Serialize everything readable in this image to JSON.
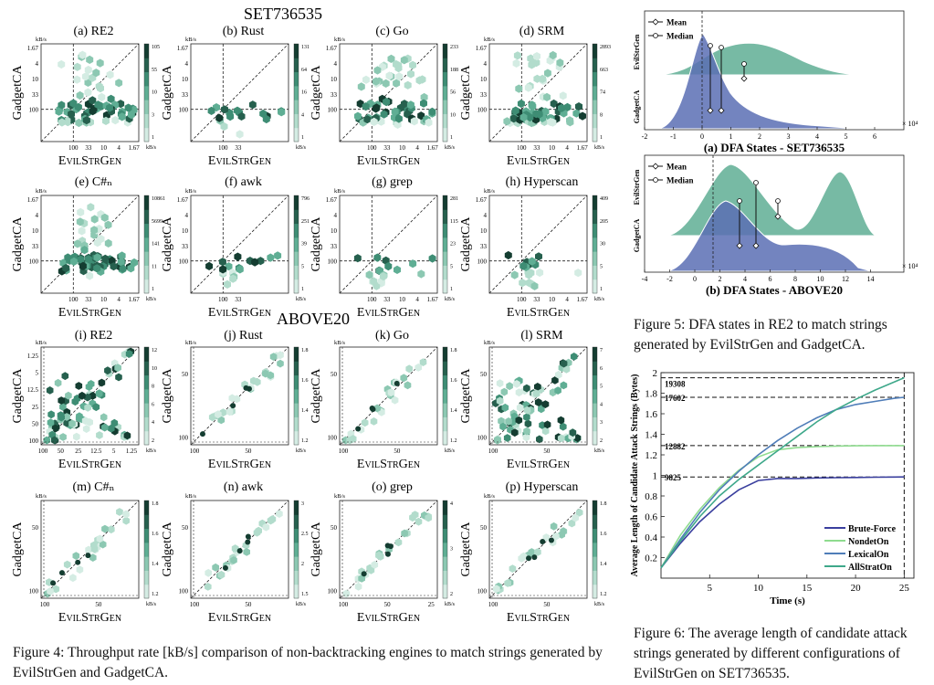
{
  "fig4": {
    "section_titles": [
      "SET736535",
      "ABOVE20"
    ],
    "top_panels": [
      {
        "title": "(a) RE2",
        "cb_ticks": [
          "105",
          "55",
          "10",
          "3",
          "1"
        ]
      },
      {
        "title": "(b) Rust",
        "cb_ticks": [
          "131",
          "64",
          "16",
          "4",
          "1"
        ]
      },
      {
        "title": "(c) Go",
        "cb_ticks": [
          "233",
          "188",
          "56",
          "10",
          "1"
        ]
      },
      {
        "title": "(d) SRM",
        "cb_ticks": [
          "2893",
          "663",
          "74",
          "8",
          "1"
        ]
      },
      {
        "title": "(e) C#ₙ",
        "cb_ticks": [
          "10861",
          "5699",
          "141",
          "11",
          "1"
        ]
      },
      {
        "title": "(f) awk",
        "cb_ticks": [
          "796",
          "251",
          "39",
          "5",
          "1"
        ]
      },
      {
        "title": "(g) grep",
        "cb_ticks": [
          "281",
          "115",
          "23",
          "5",
          "1"
        ]
      },
      {
        "title": "(h) Hyperscan",
        "cb_ticks": [
          "409",
          "205",
          "30",
          "5",
          "1"
        ]
      }
    ],
    "bottom_panels": [
      {
        "title": "(i) RE2",
        "cb_ticks": [
          "12",
          "10",
          "8",
          "6",
          "4",
          "2"
        ]
      },
      {
        "title": "(j) Rust",
        "cb_ticks": [
          "1.8",
          "1.6",
          "1.4",
          "1.2"
        ]
      },
      {
        "title": "(k) Go",
        "cb_ticks": [
          "1.8",
          "1.6",
          "1.4",
          "1.2"
        ]
      },
      {
        "title": "(l) SRM",
        "cb_ticks": [
          "7",
          "6",
          "5",
          "4",
          "3",
          "2"
        ]
      },
      {
        "title": "(m) C#ₙ",
        "cb_ticks": [
          "1.8",
          "1.6",
          "1.4",
          "1.2"
        ]
      },
      {
        "title": "(n) awk",
        "cb_ticks": [
          "3",
          "2.5",
          "2",
          "1.5"
        ]
      },
      {
        "title": "(o) grep",
        "cb_ticks": [
          "4",
          "3",
          "2"
        ]
      },
      {
        "title": "(p) Hyperscan",
        "cb_ticks": [
          "1.8",
          "1.6",
          "1.4",
          "1.2"
        ]
      }
    ],
    "ylabel": "GadgetCA",
    "xlabel": "EvilStrGen",
    "unit_top": "kB/s",
    "unit_right": "kB/s",
    "top_yticks_a": [
      "1.67",
      "4",
      "10",
      "33",
      "100"
    ],
    "top_xticks_a": [
      "100",
      "33",
      "10",
      "4",
      "1.67"
    ],
    "top_xticks_short": [
      "100",
      "33"
    ],
    "bottom_ticks_i": [
      "1.25",
      "5",
      "12.5",
      "25",
      "50",
      "100"
    ],
    "bottom_xticks_i": [
      "100",
      "50",
      "25",
      "12.5",
      "5",
      "1.25"
    ],
    "bottom_ticks_short": [
      "50",
      "100"
    ],
    "bottom_xticks_o": [
      "100",
      "50",
      "25"
    ],
    "caption": "Figure 4: Throughput rate [kB/s] comparison of non-backtracking engines to match strings generated by EvilStrGen and GadgetCA."
  },
  "fig5": {
    "panel_a": {
      "label": "(a) DFA States - SET736535",
      "legend": [
        "Mean",
        "Median"
      ],
      "ylabels": [
        "EvilStrGen",
        "GadgetCA"
      ],
      "xticks": [
        "-2",
        "-1",
        "0",
        "1",
        "2",
        "3",
        "4",
        "5",
        "6"
      ],
      "exponent": "× 10⁴"
    },
    "panel_b": {
      "label": "(b) DFA States - ABOVE20",
      "legend": [
        "Mean",
        "Median"
      ],
      "ylabels": [
        "EvilStrGen",
        "GadgetCA"
      ],
      "xticks": [
        "-4",
        "-2",
        "0",
        "2",
        "4",
        "6",
        "8",
        "10",
        "12",
        "14"
      ],
      "exponent": "× 10⁴"
    },
    "caption": "Figure 5: DFA states in RE2 to match strings generated by EvilStrGen and GadgetCA.",
    "colors": {
      "green": "#5fae94",
      "blue": "#5a6fb4"
    }
  },
  "fig6": {
    "ylabel": "Average Length of Candidate Attack Strings (Bytes)",
    "xlabel": "Time (s)",
    "annotations": [
      "19308",
      "17602",
      "12882",
      "9825"
    ],
    "caption": "Figure 6: The average length of candidate attack strings generated by different configurations of EvilStrGen on SET736535.",
    "chart_data": {
      "type": "line",
      "xlabel": "Time (s)",
      "ylabel": "Average Length of Candidate Attack Strings (Bytes)",
      "xlim": [
        0,
        26
      ],
      "ylim": [
        0,
        2
      ],
      "xticks": [
        5,
        10,
        15,
        20,
        25
      ],
      "yticks": [
        0.2,
        0.4,
        0.6,
        0.8,
        1,
        1.2,
        1.4,
        1.6,
        1.8,
        2
      ],
      "ytick_labels": [
        "0.2",
        "0.4",
        "0.6",
        "0.8",
        "1",
        "1.2",
        "1.4",
        "1.6",
        "1.8",
        "2"
      ],
      "legend_position": "bottom-right",
      "series": [
        {
          "name": "Brute-Force",
          "color": "#3a3f9e",
          "x": [
            0,
            2,
            4,
            6,
            8,
            10,
            12,
            14,
            16,
            18,
            20,
            22,
            24,
            25
          ],
          "y": [
            0.1,
            0.34,
            0.55,
            0.72,
            0.86,
            0.95,
            0.97,
            0.97,
            0.975,
            0.978,
            0.98,
            0.982,
            0.984,
            0.985
          ]
        },
        {
          "name": "NondetOn",
          "color": "#8fdc8f",
          "x": [
            0,
            2,
            4,
            6,
            8,
            10,
            12,
            14,
            16,
            18,
            20,
            22,
            24,
            25
          ],
          "y": [
            0.1,
            0.42,
            0.67,
            0.88,
            1.05,
            1.18,
            1.25,
            1.27,
            1.28,
            1.285,
            1.288,
            1.29,
            1.29,
            1.29
          ]
        },
        {
          "name": "LexicalOn",
          "color": "#4f7db8",
          "x": [
            0,
            2,
            4,
            6,
            8,
            10,
            12,
            14,
            16,
            18,
            20,
            22,
            24,
            25
          ],
          "y": [
            0.1,
            0.38,
            0.64,
            0.86,
            1.04,
            1.2,
            1.34,
            1.46,
            1.56,
            1.64,
            1.69,
            1.72,
            1.75,
            1.76
          ]
        },
        {
          "name": "AllStratOn",
          "color": "#3ea88a",
          "x": [
            0,
            2,
            4,
            6,
            8,
            10,
            12,
            14,
            16,
            18,
            20,
            22,
            24,
            25
          ],
          "y": [
            0.1,
            0.36,
            0.6,
            0.8,
            0.96,
            1.1,
            1.24,
            1.38,
            1.52,
            1.64,
            1.74,
            1.83,
            1.91,
            1.95
          ]
        }
      ]
    }
  }
}
